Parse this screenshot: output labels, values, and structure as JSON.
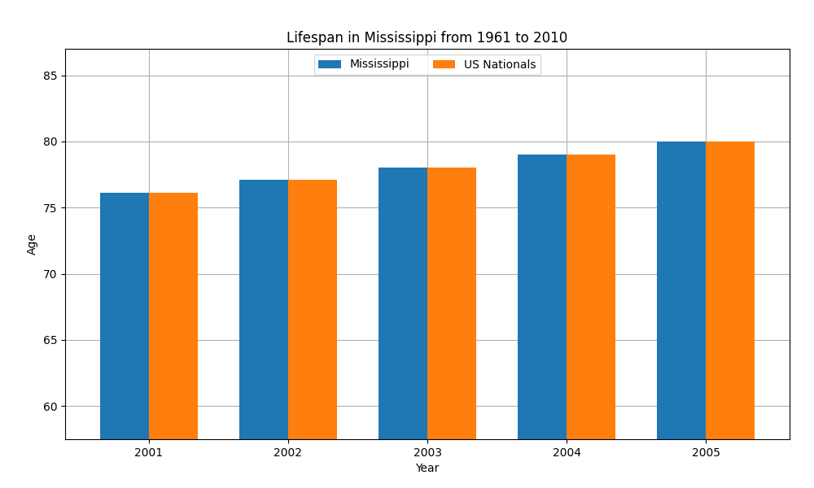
{
  "chart_data": {
    "type": "bar",
    "title": "Lifespan in Mississippi from 1961 to 2010",
    "xlabel": "Year",
    "ylabel": "Age",
    "categories": [
      "2001",
      "2002",
      "2003",
      "2004",
      "2005"
    ],
    "series": [
      {
        "name": "Mississippi",
        "values": [
          76.1,
          77.1,
          78.0,
          79.0,
          80.0
        ]
      },
      {
        "name": "US Nationals",
        "values": [
          76.1,
          77.1,
          78.0,
          79.0,
          80.0
        ]
      }
    ],
    "ylim": [
      57.5,
      87
    ],
    "yticks": [
      60,
      65,
      70,
      75,
      80,
      85
    ],
    "grid": true,
    "legend": "upper center"
  }
}
